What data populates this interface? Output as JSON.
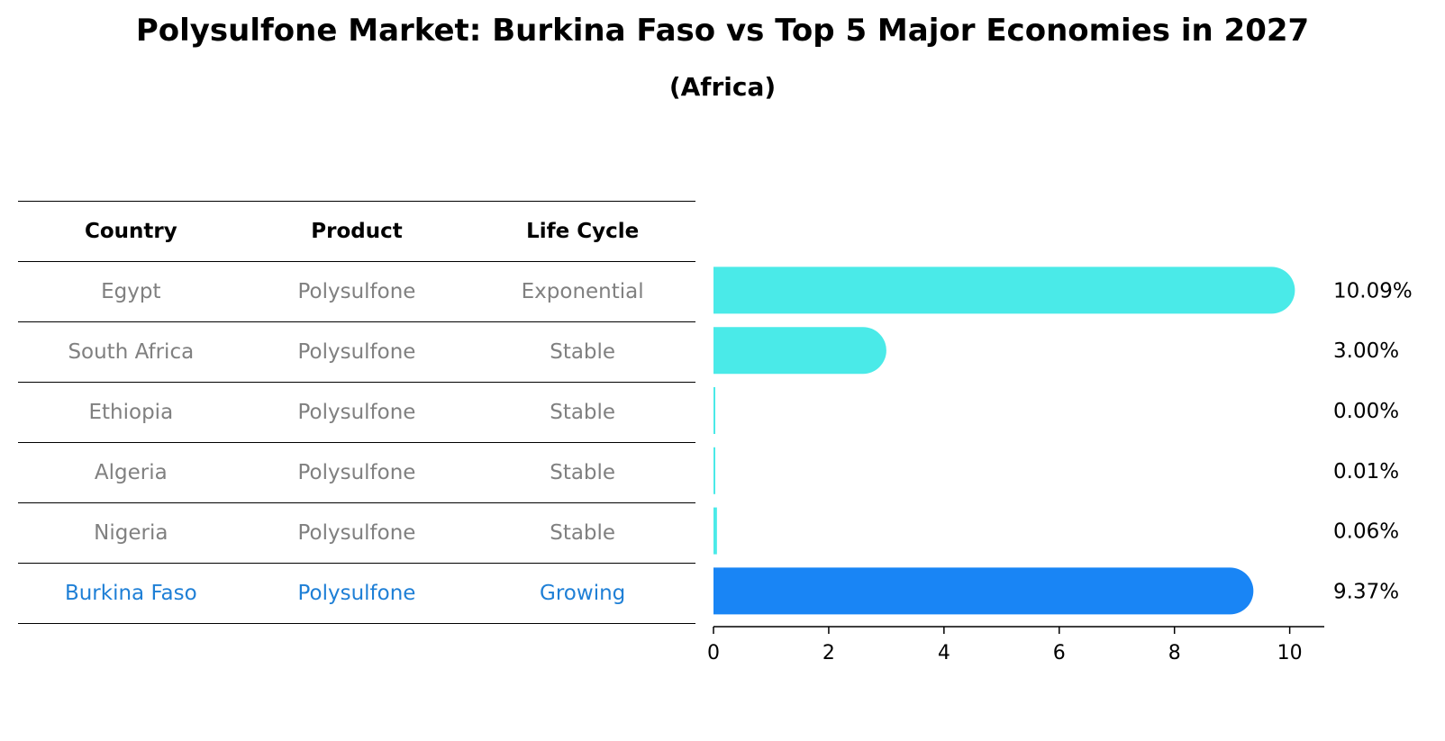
{
  "title": "Polysulfone Market: Burkina Faso vs Top 5 Major Economies in 2027",
  "subtitle": "(Africa)",
  "table": {
    "headers": [
      "Country",
      "Product",
      "Life Cycle"
    ],
    "rows": [
      {
        "country": "Egypt",
        "product": "Polysulfone",
        "life_cycle": "Exponential"
      },
      {
        "country": "South Africa",
        "product": "Polysulfone",
        "life_cycle": "Stable"
      },
      {
        "country": "Ethiopia",
        "product": "Polysulfone",
        "life_cycle": "Stable"
      },
      {
        "country": "Algeria",
        "product": "Polysulfone",
        "life_cycle": "Stable"
      },
      {
        "country": "Nigeria",
        "product": "Polysulfone",
        "life_cycle": "Stable"
      },
      {
        "country": "Burkina Faso",
        "product": "Polysulfone",
        "life_cycle": "Growing"
      }
    ]
  },
  "colors": {
    "bar": "#4aeae8",
    "highlight": "#1985f5",
    "highlight_text": "#1e7fd6",
    "muted_text": "#808080"
  },
  "chart_data": {
    "type": "bar",
    "orientation": "horizontal",
    "categories": [
      "Egypt",
      "South Africa",
      "Ethiopia",
      "Algeria",
      "Nigeria",
      "Burkina Faso"
    ],
    "values": [
      10.09,
      3.0,
      0.0,
      0.01,
      0.06,
      9.37
    ],
    "value_labels": [
      "10.09%",
      "3.00%",
      "0.00%",
      "0.01%",
      "0.06%",
      "9.37%"
    ],
    "highlight_category": "Burkina Faso",
    "xlim": [
      0,
      10.6
    ],
    "xticks": [
      0,
      2,
      4,
      6,
      8,
      10
    ],
    "grid": false
  }
}
